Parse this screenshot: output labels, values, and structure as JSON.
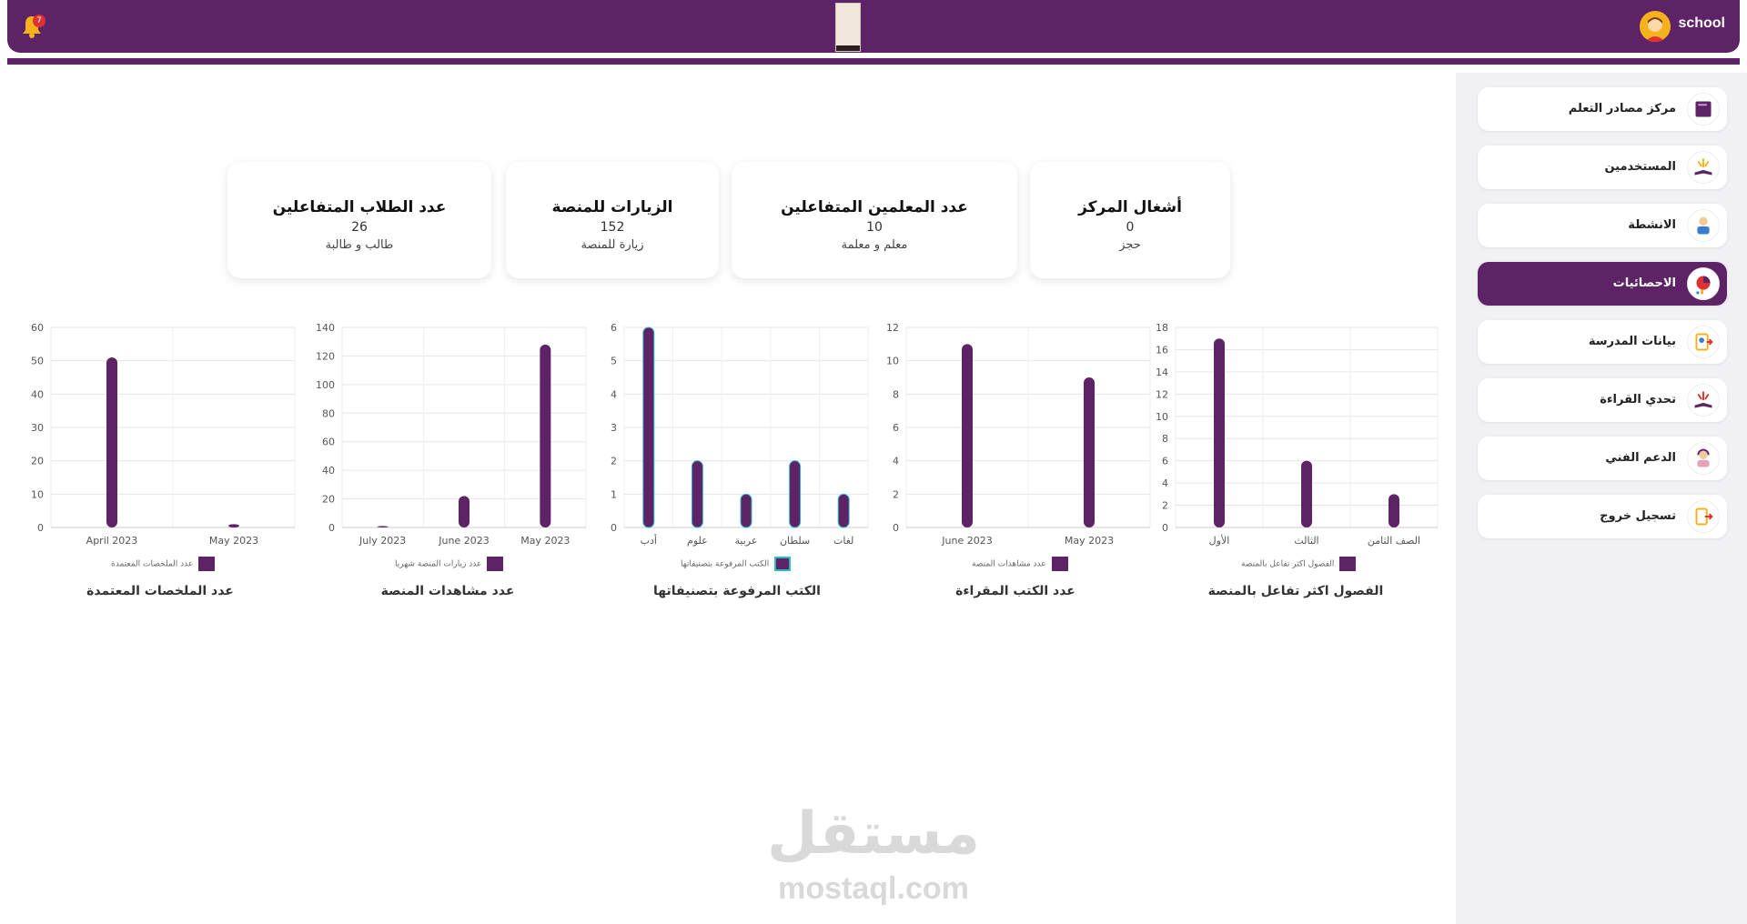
{
  "header": {
    "user_name": "school",
    "notification_count": "7",
    "accent_color": "#5e2266"
  },
  "sidebar": {
    "items": [
      {
        "label": "مركز مصادر التعلم",
        "icon": "book-icon"
      },
      {
        "label": "المستخدمين",
        "icon": "open-book-icon"
      },
      {
        "label": "الانشطة",
        "icon": "student-icon"
      },
      {
        "label": "الاحصائيات",
        "icon": "pie-chart-icon",
        "active": true
      },
      {
        "label": "بيانات المدرسة",
        "icon": "school-data-icon"
      },
      {
        "label": "تحدي القراءة",
        "icon": "reading-challenge-icon"
      },
      {
        "label": "الدعم الفني",
        "icon": "support-icon"
      },
      {
        "label": "تسجيل خروج",
        "icon": "logout-icon"
      }
    ]
  },
  "stats": [
    {
      "title": "أشغال المركز",
      "value": "0",
      "unit": "حجز"
    },
    {
      "title": "عدد المعلمين المتفاعلين",
      "value": "10",
      "unit": "معلم و معلمة"
    },
    {
      "title": "الزيارات للمنصة",
      "value": "152",
      "unit": "زيارة للمنصة"
    },
    {
      "title": "عدد الطلاب المتفاعلين",
      "value": "26",
      "unit": "طالب و طالبة"
    }
  ],
  "chart_data": [
    {
      "type": "bar",
      "title": "الفصول اكثر تفاعل بالمنصة",
      "categories": [
        "الأول",
        "الثالث",
        "الصف الثامن"
      ],
      "series": [
        {
          "name": "الفصول اكثر تفاعل بالمنصة",
          "values": [
            17,
            6,
            3
          ]
        }
      ],
      "ylim": [
        0,
        18
      ],
      "yticks": [
        0,
        2,
        4,
        6,
        8,
        10,
        12,
        14,
        16,
        18
      ]
    },
    {
      "type": "bar",
      "title": "عدد الكتب المقراءة",
      "categories": [
        "June 2023",
        "May 2023"
      ],
      "series": [
        {
          "name": "عدد مشاهدات المنصة",
          "values": [
            11,
            9
          ]
        }
      ],
      "ylim": [
        0,
        12
      ],
      "yticks": [
        0,
        2,
        4,
        6,
        8,
        10,
        12
      ]
    },
    {
      "type": "bar",
      "title": "الكتب المرفوعة بتصنيفاتها",
      "categories": [
        "أدب",
        "علوم",
        "عربية",
        "سلطان",
        "لغات"
      ],
      "series": [
        {
          "name": "الكتب المرفوعة بتصنيفاتها",
          "values": [
            6,
            2,
            1,
            2,
            1
          ]
        }
      ],
      "ylim": [
        0,
        6
      ],
      "yticks": [
        0,
        1,
        2,
        3,
        4,
        5,
        6
      ]
    },
    {
      "type": "bar",
      "title": "عدد مشاهدات المنصة",
      "categories": [
        "July 2023",
        "June 2023",
        "May 2023"
      ],
      "series": [
        {
          "name": "عدد زيارات المنصة شهريا",
          "values": [
            1,
            22,
            128
          ]
        }
      ],
      "ylim": [
        0,
        140
      ],
      "yticks": [
        0,
        20,
        40,
        60,
        80,
        100,
        120,
        140
      ]
    },
    {
      "type": "bar",
      "title": "عدد الملخصات المعتمدة",
      "categories": [
        "April 2023",
        "May 2023"
      ],
      "series": [
        {
          "name": "عدد الملخصات المعتمدة",
          "values": [
            51,
            1
          ]
        }
      ],
      "ylim": [
        0,
        60
      ],
      "yticks": [
        0,
        10,
        20,
        30,
        40,
        50,
        60
      ]
    }
  ],
  "watermark": {
    "arabic": "مستقل",
    "latin": "mostaql.com"
  }
}
